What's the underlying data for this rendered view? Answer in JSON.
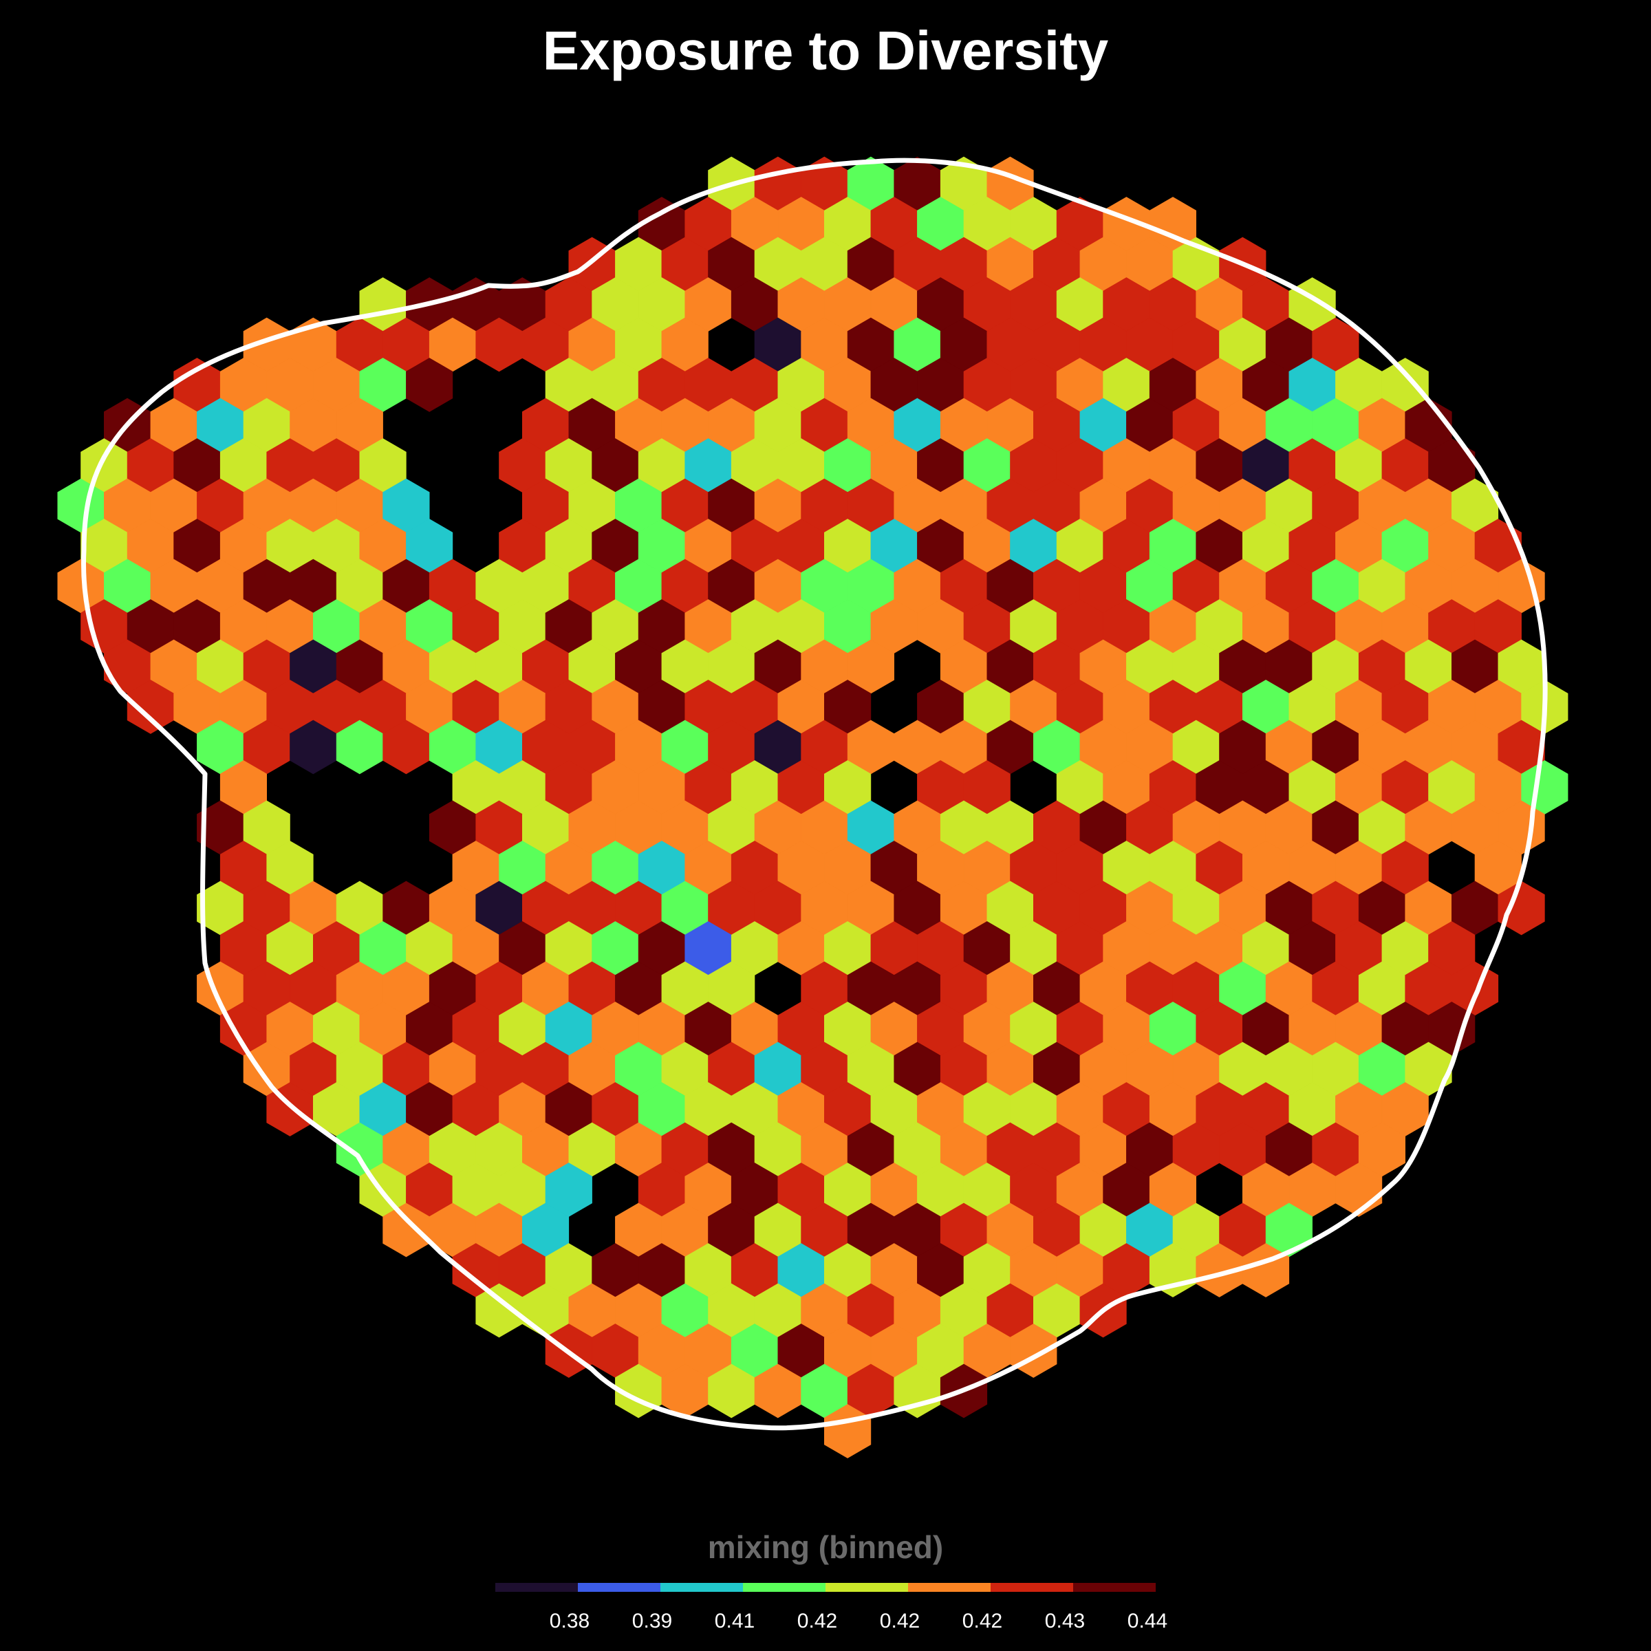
{
  "chart_data": {
    "type": "hexbin-map",
    "title": "Exposure to Diversity",
    "legend": {
      "title": "mixing (binned)",
      "position": "bottom",
      "bins": [
        {
          "color": "#1e0f30",
          "label": "0.38"
        },
        {
          "color": "#3c5ce8",
          "label": "0.39"
        },
        {
          "color": "#22c8cc",
          "label": "0.41"
        },
        {
          "color": "#5aff5a",
          "label": "0.42"
        },
        {
          "color": "#cbe82a",
          "label": "0.42"
        },
        {
          "color": "#fb8423",
          "label": "0.42"
        },
        {
          "color": "#d0240f",
          "label": "0.43"
        },
        {
          "color": "#6a0205",
          "label": "0.44"
        }
      ]
    },
    "boundary_outline_color": "#ffffff",
    "background": "#000000",
    "grid": false
  }
}
